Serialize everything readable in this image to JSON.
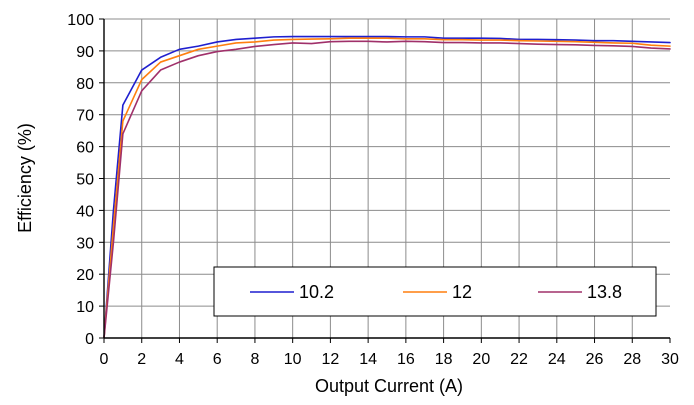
{
  "colors": {
    "background": "#ffffff",
    "grid": "#8c8c8c",
    "axis": "#000000",
    "series_10_2": "#1f1fcf",
    "series_12": "#ff7f0e",
    "series_13_8": "#a0306a"
  },
  "chart_data": {
    "type": "line",
    "title": "",
    "xlabel": "Output Current (A)",
    "ylabel": "Efficiency (%)",
    "xlim": [
      0,
      30
    ],
    "ylim": [
      0,
      100
    ],
    "x_ticks": [
      0,
      2,
      4,
      6,
      8,
      10,
      12,
      14,
      16,
      18,
      20,
      22,
      24,
      26,
      28,
      30
    ],
    "y_ticks": [
      0,
      10,
      20,
      30,
      40,
      50,
      60,
      70,
      80,
      90,
      100
    ],
    "grid": true,
    "legend_position": "bottom-right",
    "series": [
      {
        "name": "10.2",
        "color": "#1f1fcf",
        "points": [
          [
            0,
            0
          ],
          [
            0.5,
            40
          ],
          [
            1,
            73
          ],
          [
            2,
            84
          ],
          [
            3,
            88
          ],
          [
            4,
            90.5
          ],
          [
            5,
            91.5
          ],
          [
            6,
            92.8
          ],
          [
            7,
            93.6
          ],
          [
            8,
            94
          ],
          [
            9,
            94.4
          ],
          [
            10,
            94.5
          ],
          [
            11,
            94.5
          ],
          [
            12,
            94.5
          ],
          [
            13,
            94.5
          ],
          [
            14,
            94.5
          ],
          [
            15,
            94.5
          ],
          [
            16,
            94.4
          ],
          [
            17,
            94.4
          ],
          [
            18,
            94
          ],
          [
            19,
            94
          ],
          [
            20,
            94
          ],
          [
            21,
            93.9
          ],
          [
            22,
            93.6
          ],
          [
            23,
            93.6
          ],
          [
            24,
            93.5
          ],
          [
            25,
            93.4
          ],
          [
            26,
            93.2
          ],
          [
            27,
            93.2
          ],
          [
            28,
            93
          ],
          [
            29,
            92.8
          ],
          [
            30,
            92.6
          ]
        ]
      },
      {
        "name": "12",
        "color": "#ff7f0e",
        "points": [
          [
            0,
            0
          ],
          [
            0.5,
            35
          ],
          [
            1,
            68
          ],
          [
            2,
            81
          ],
          [
            3,
            86.5
          ],
          [
            4,
            88.5
          ],
          [
            5,
            90.5
          ],
          [
            6,
            91.5
          ],
          [
            7,
            92.5
          ],
          [
            8,
            92.8
          ],
          [
            9,
            93.4
          ],
          [
            10,
            93.6
          ],
          [
            11,
            93.7
          ],
          [
            12,
            93.8
          ],
          [
            13,
            94
          ],
          [
            14,
            94
          ],
          [
            15,
            94
          ],
          [
            16,
            93.8
          ],
          [
            17,
            93.8
          ],
          [
            18,
            93.5
          ],
          [
            19,
            93.5
          ],
          [
            20,
            93.4
          ],
          [
            21,
            93.4
          ],
          [
            22,
            93.2
          ],
          [
            23,
            93.1
          ],
          [
            24,
            93
          ],
          [
            25,
            92.9
          ],
          [
            26,
            92.7
          ],
          [
            27,
            92.5
          ],
          [
            28,
            92.4
          ],
          [
            29,
            91.8
          ],
          [
            30,
            91.5
          ]
        ]
      },
      {
        "name": "13.8",
        "color": "#a0306a",
        "points": [
          [
            0,
            0
          ],
          [
            0.5,
            30
          ],
          [
            1,
            64
          ],
          [
            2,
            77.5
          ],
          [
            3,
            84
          ],
          [
            4,
            86.5
          ],
          [
            5,
            88.5
          ],
          [
            6,
            89.8
          ],
          [
            7,
            90.5
          ],
          [
            8,
            91.4
          ],
          [
            9,
            92
          ],
          [
            10,
            92.5
          ],
          [
            11,
            92.3
          ],
          [
            12,
            92.9
          ],
          [
            13,
            93
          ],
          [
            14,
            93
          ],
          [
            15,
            92.8
          ],
          [
            16,
            93
          ],
          [
            17,
            92.9
          ],
          [
            18,
            92.6
          ],
          [
            19,
            92.6
          ],
          [
            20,
            92.5
          ],
          [
            21,
            92.5
          ],
          [
            22,
            92.3
          ],
          [
            23,
            92.1
          ],
          [
            24,
            92
          ],
          [
            25,
            91.9
          ],
          [
            26,
            91.7
          ],
          [
            27,
            91.6
          ],
          [
            28,
            91.4
          ],
          [
            29,
            90.9
          ],
          [
            30,
            90.6
          ]
        ]
      }
    ]
  }
}
